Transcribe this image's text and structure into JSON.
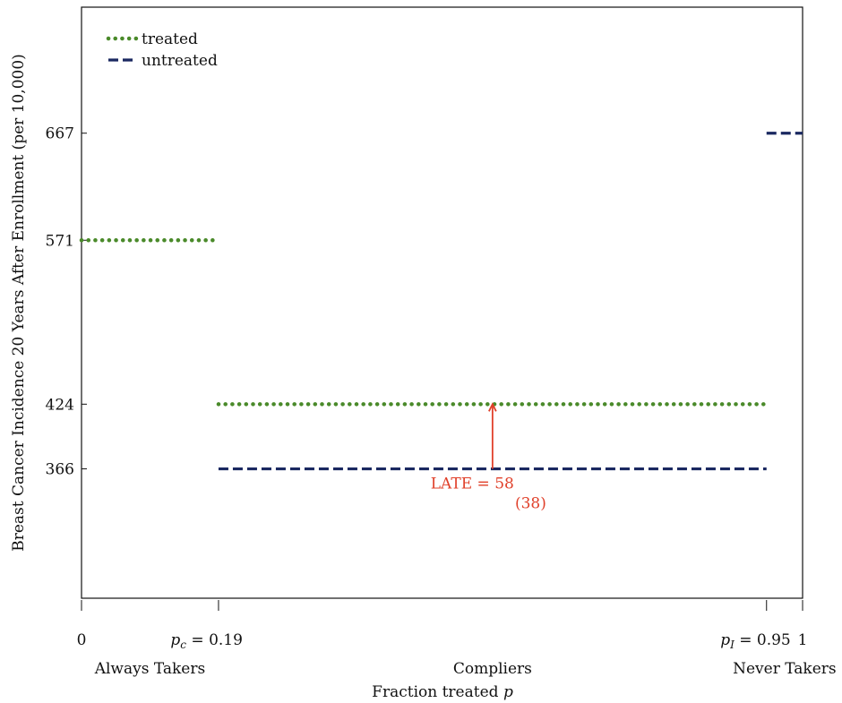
{
  "chart_data": {
    "type": "line",
    "ylabel": "Breast Cancer Incidence 20 Years After Enrollment (per 10,000)",
    "xlabel_text": "Fraction treated ",
    "xlabel_var": "p",
    "xlim": [
      0,
      1
    ],
    "ylim": [
      250,
      780
    ],
    "y_ticks": [
      366,
      424,
      571,
      667
    ],
    "y_tick_labels": [
      "366",
      "424",
      "571",
      "667"
    ],
    "x_ticks": [
      {
        "value": 0,
        "label_plain": "0"
      },
      {
        "value": 0.19,
        "var": "p",
        "sub": "c",
        "rest": " = 0.19"
      },
      {
        "value": 0.95,
        "var": "p",
        "sub": "I",
        "rest": " = 0.95"
      },
      {
        "value": 1,
        "label_plain": "1"
      }
    ],
    "group_labels": [
      {
        "label": "Always Takers",
        "x": 0.095
      },
      {
        "label": "Compliers",
        "x": 0.57
      },
      {
        "label": "Never Takers",
        "x": 0.975
      }
    ],
    "legend": {
      "position": "top-left",
      "entries": [
        {
          "name": "treated",
          "color": "#4a8a2a",
          "style": "dotted"
        },
        {
          "name": "untreated",
          "color": "#1a2860",
          "style": "dashed"
        }
      ]
    },
    "series": [
      {
        "name": "treated",
        "color": "#4a8a2a",
        "style": "dotted",
        "segments": [
          {
            "x": [
              0,
              0.19
            ],
            "y": 571
          },
          {
            "x": [
              0.19,
              0.95
            ],
            "y": 424
          }
        ]
      },
      {
        "name": "untreated",
        "color": "#1a2860",
        "style": "dashed",
        "segments": [
          {
            "x": [
              0.19,
              0.95
            ],
            "y": 366
          },
          {
            "x": [
              0.95,
              1
            ],
            "y": 667
          }
        ]
      }
    ],
    "annotation": {
      "x": 0.57,
      "y_from": 366,
      "y_to": 424,
      "label": "LATE = 58",
      "se_label": "(38)",
      "color": "#e0402a"
    }
  }
}
